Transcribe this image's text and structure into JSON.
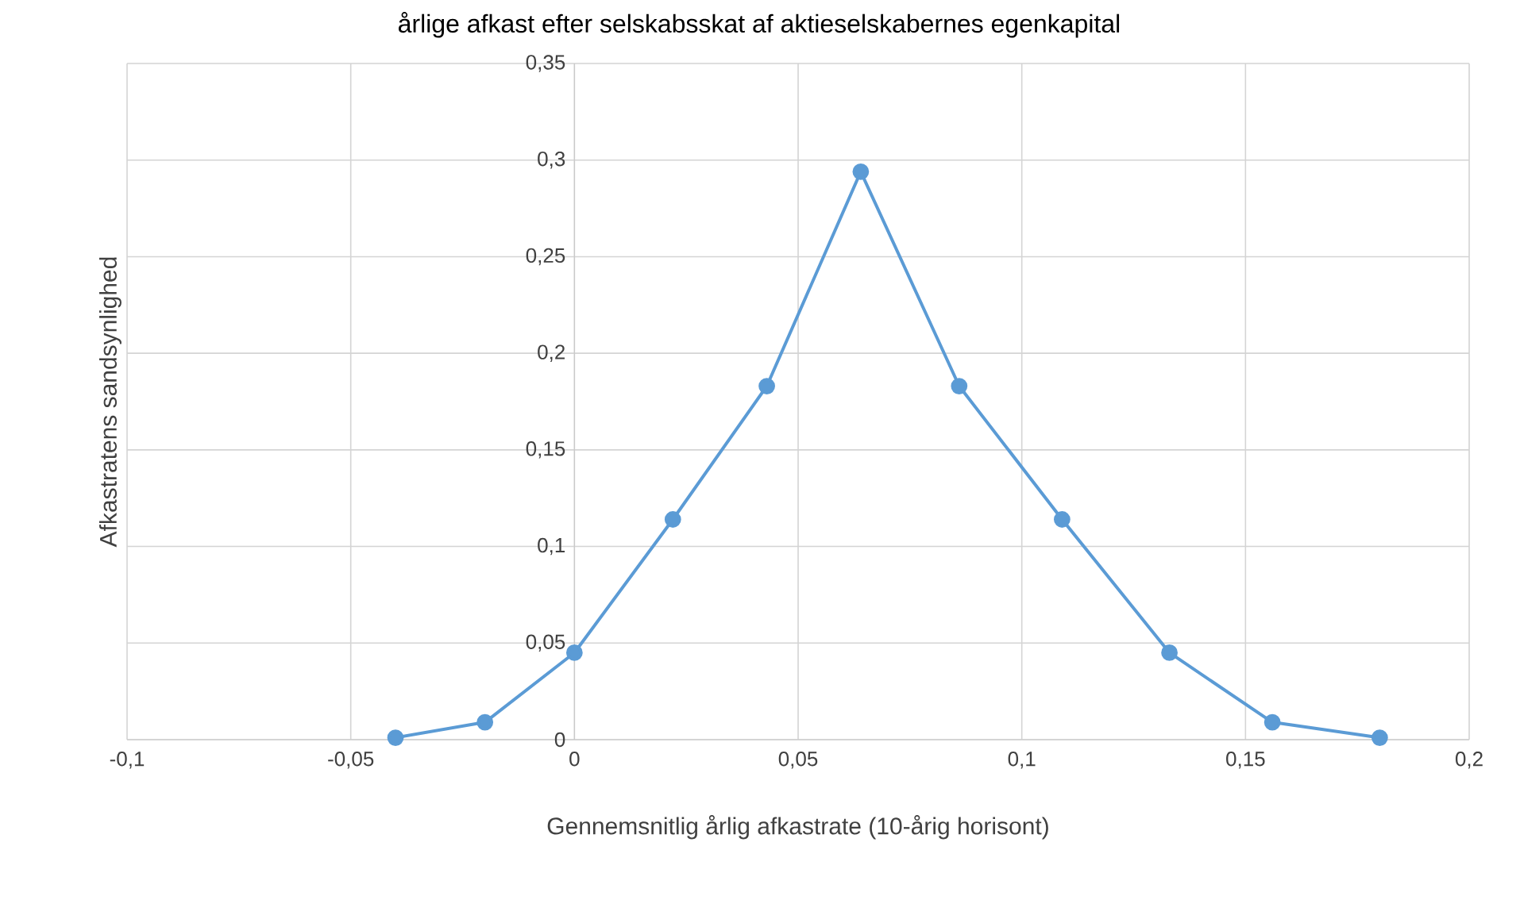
{
  "chart_data": {
    "type": "line",
    "title": "årlige afkast efter selskabsskat af aktieselskabernes egenkapital",
    "xlabel": "Gennemsnitlig årlig afkastrate (10-årig horisont)",
    "ylabel": "Afkastratens sandsynlighed",
    "x": [
      -0.04,
      -0.02,
      0.0,
      0.022,
      0.043,
      0.064,
      0.086,
      0.109,
      0.133,
      0.156,
      0.18
    ],
    "series": [
      {
        "color": "#5b9bd5",
        "values": [
          0.001,
          0.009,
          0.045,
          0.114,
          0.183,
          0.294,
          0.183,
          0.114,
          0.045,
          0.009,
          0.001
        ]
      }
    ],
    "xlim": [
      -0.1,
      0.2
    ],
    "xticks": [
      {
        "value": -0.1,
        "label": "-0,1"
      },
      {
        "value": -0.05,
        "label": "-0,05"
      },
      {
        "value": 0,
        "label": "0"
      },
      {
        "value": 0.05,
        "label": "0,05"
      },
      {
        "value": 0.1,
        "label": "0,1"
      },
      {
        "value": 0.15,
        "label": "0,15"
      },
      {
        "value": 0.2,
        "label": "0,2"
      }
    ],
    "ylim": [
      0,
      0.35
    ],
    "yticks": [
      {
        "value": 0,
        "label": "0"
      },
      {
        "value": 0.05,
        "label": "0,05"
      },
      {
        "value": 0.1,
        "label": "0,1"
      },
      {
        "value": 0.15,
        "label": "0,15"
      },
      {
        "value": 0.2,
        "label": "0,2"
      },
      {
        "value": 0.25,
        "label": "0,25"
      },
      {
        "value": 0.3,
        "label": "0,3"
      },
      {
        "value": 0.35,
        "label": "0,35"
      }
    ],
    "grid": true,
    "marker": "circle",
    "line_style": "solid"
  }
}
